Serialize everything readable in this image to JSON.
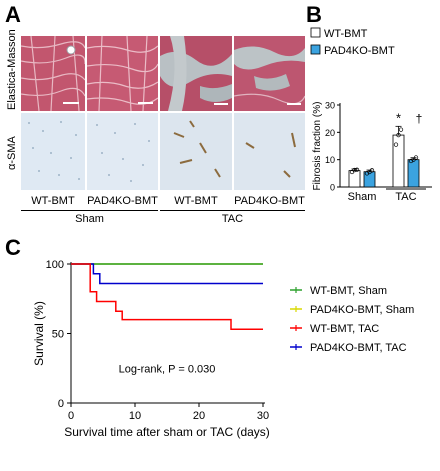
{
  "panels": {
    "a": "A",
    "b": "B",
    "c": "C"
  },
  "panel_a": {
    "row_labels": [
      "Elastica-Masson",
      "α-SMA"
    ],
    "col_labels": [
      "WT-BMT",
      "PAD4KO-BMT",
      "WT-BMT",
      "PAD4KO-BMT"
    ],
    "group_labels": [
      "Sham",
      "TAC"
    ]
  },
  "colors": {
    "masson": "#c2566e",
    "masson_dark": "#a33b55",
    "fibrosis": "#b9c0c4",
    "sma_bg": "#dfe9f3",
    "wt": "#ffffff",
    "ko": "#3ba3e0",
    "line_green": "#2ca02c",
    "line_yellow": "#d8d800",
    "line_red": "#ff0000",
    "line_blue": "#0000cc"
  },
  "chart_data": [
    {
      "type": "bar",
      "categories": [
        "Sham",
        "TAC"
      ],
      "series": [
        {
          "name": "WT-BMT",
          "values": [
            6.0,
            19.0
          ],
          "errors": [
            0.6,
            3.2
          ],
          "points": [
            [
              5.5,
              6.2,
              6.3
            ],
            [
              15.5,
              19.0,
              21.0
            ]
          ]
        },
        {
          "name": "PAD4KO-BMT",
          "values": [
            5.6,
            10.0
          ],
          "errors": [
            0.6,
            0.7
          ],
          "points": [
            [
              5.0,
              5.5,
              6.1
            ],
            [
              9.5,
              10.0,
              10.8
            ]
          ]
        }
      ],
      "ylabel": "Fibrosis fraction (%)",
      "ylim": [
        0,
        30
      ],
      "yticks": [
        "0",
        "10",
        "20",
        "30"
      ],
      "annotations": [
        "*",
        "†"
      ],
      "legend": "top"
    },
    {
      "type": "line",
      "xlabel": "Survival time after sham or TAC (days)",
      "ylabel": "Survival (%)",
      "xlim": [
        0,
        30
      ],
      "ylim": [
        0,
        100
      ],
      "xticks": [
        "0",
        "10",
        "20",
        "30"
      ],
      "yticks": [
        "0",
        "50",
        "100"
      ],
      "annotation": "Log-rank, P = 0.030",
      "legend": "right",
      "series": [
        {
          "name": "WT-BMT, Sham",
          "steps": [
            [
              0,
              100
            ],
            [
              30,
              100
            ]
          ]
        },
        {
          "name": "PAD4KO-BMT, Sham",
          "steps": [
            [
              0,
              100
            ],
            [
              30,
              100
            ]
          ]
        },
        {
          "name": "WT-BMT, TAC",
          "steps": [
            [
              0,
              100
            ],
            [
              3,
              100
            ],
            [
              3,
              80
            ],
            [
              4,
              80
            ],
            [
              4,
              73
            ],
            [
              7,
              73
            ],
            [
              7,
              66
            ],
            [
              8,
              66
            ],
            [
              8,
              60
            ],
            [
              25,
              60
            ],
            [
              25,
              53
            ],
            [
              30,
              53
            ]
          ]
        },
        {
          "name": "PAD4KO-BMT, TAC",
          "steps": [
            [
              0,
              100
            ],
            [
              3.5,
              100
            ],
            [
              3.5,
              93
            ],
            [
              4.5,
              93
            ],
            [
              4.5,
              86
            ],
            [
              30,
              86
            ]
          ]
        }
      ]
    }
  ]
}
